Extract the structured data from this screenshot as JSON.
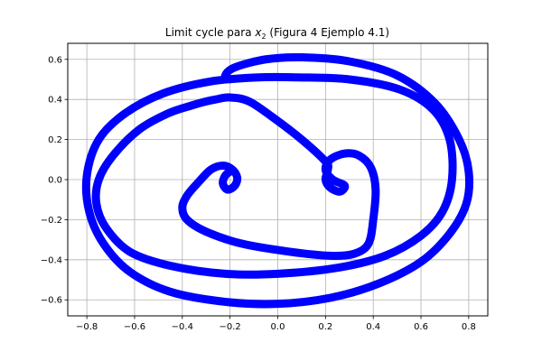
{
  "chart_data": {
    "type": "line",
    "title_prefix": "Limit cycle para ",
    "title_var": "x",
    "title_sub": "2",
    "title_suffix": " (Figura 4 Ejemplo 4.1)",
    "xlabel": "",
    "ylabel": "",
    "xlim": [
      -0.88,
      0.88
    ],
    "ylim": [
      -0.68,
      0.68
    ],
    "xticks": [
      -0.8,
      -0.6,
      -0.4,
      -0.2,
      0.0,
      0.2,
      0.4,
      0.6,
      0.8
    ],
    "yticks": [
      -0.6,
      -0.4,
      -0.2,
      0.0,
      0.2,
      0.4,
      0.6
    ],
    "xtick_labels": [
      "−0.8",
      "−0.6",
      "−0.4",
      "−0.2",
      "0.0",
      "0.2",
      "0.4",
      "0.6",
      "0.8"
    ],
    "ytick_labels": [
      "−0.6",
      "−0.4",
      "−0.2",
      "0.0",
      "0.2",
      "0.4",
      "0.6"
    ],
    "grid": true,
    "color": "#0000ff",
    "series": [
      {
        "x": [
          -0.2,
          -0.22,
          -0.23,
          -0.21,
          -0.18,
          -0.17,
          -0.19,
          -0.23,
          -0.28,
          -0.33,
          -0.38,
          -0.4,
          -0.38,
          -0.3,
          -0.15,
          0.05,
          0.22,
          0.32,
          0.38,
          0.4,
          0.41,
          0.39,
          0.34,
          0.28,
          0.22,
          0.2,
          0.23,
          0.28,
          0.26,
          0.22,
          0.2,
          0.21,
          0.2,
          0.1,
          -0.02,
          -0.12,
          -0.2,
          -0.26,
          -0.3,
          -0.36,
          -0.46,
          -0.58,
          -0.69,
          -0.75,
          -0.76,
          -0.72,
          -0.62,
          -0.45,
          -0.22,
          0.0,
          0.25,
          0.45,
          0.6,
          0.69,
          0.73,
          0.72,
          0.65,
          0.51,
          0.3,
          0.08,
          -0.08,
          -0.28,
          -0.48,
          -0.64,
          -0.75,
          -0.8,
          -0.79,
          -0.73,
          -0.62,
          -0.45,
          -0.22,
          0.0,
          0.22,
          0.42,
          0.6,
          0.72,
          0.79,
          0.8,
          0.76,
          0.66,
          0.5,
          0.3,
          0.1,
          -0.05,
          -0.18,
          -0.22,
          -0.2
        ],
        "y": [
          0.04,
          0.02,
          -0.02,
          -0.05,
          -0.03,
          0.01,
          0.05,
          0.07,
          0.05,
          -0.01,
          -0.08,
          -0.14,
          -0.2,
          -0.26,
          -0.32,
          -0.36,
          -0.38,
          -0.37,
          -0.32,
          -0.2,
          -0.05,
          0.06,
          0.12,
          0.13,
          0.1,
          0.05,
          0.0,
          -0.03,
          -0.06,
          -0.04,
          0.0,
          0.05,
          0.09,
          0.2,
          0.31,
          0.39,
          0.41,
          0.4,
          0.39,
          0.37,
          0.33,
          0.25,
          0.12,
          0.0,
          -0.12,
          -0.24,
          -0.36,
          -0.43,
          -0.47,
          -0.47,
          -0.44,
          -0.38,
          -0.28,
          -0.16,
          0.0,
          0.2,
          0.35,
          0.45,
          0.5,
          0.51,
          0.51,
          0.49,
          0.43,
          0.33,
          0.2,
          0.02,
          -0.16,
          -0.32,
          -0.46,
          -0.56,
          -0.61,
          -0.62,
          -0.59,
          -0.52,
          -0.41,
          -0.27,
          -0.12,
          0.04,
          0.2,
          0.38,
          0.52,
          0.59,
          0.61,
          0.6,
          0.56,
          0.52,
          0.5
        ]
      }
    ]
  }
}
